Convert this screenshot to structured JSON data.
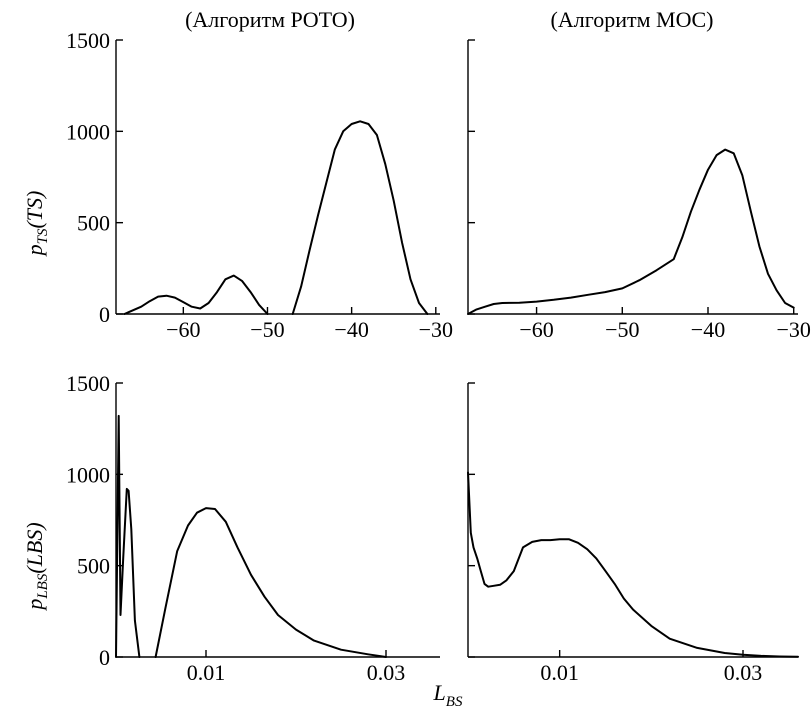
{
  "figure": {
    "x_shared_label": "L",
    "x_shared_label_sub": "BS"
  },
  "chart_data": [
    {
      "type": "line",
      "title": "(Алгоритм POTO)",
      "ylabel_main": "p",
      "ylabel_sub": "TS",
      "ylabel_arg": "(TS)",
      "xlim": [
        -68,
        -29.5
      ],
      "ylim": [
        0,
        1500
      ],
      "xticks": [
        -60,
        -50,
        -40,
        -30
      ],
      "xtick_labels": [
        "−60",
        "−50",
        "−40",
        "−30"
      ],
      "yticks": [
        0,
        500,
        1000,
        1500
      ],
      "ytick_labels": [
        "0",
        "500",
        "1000",
        "1500"
      ],
      "series": [
        {
          "segments": [
            {
              "x": [
                -67,
                -65,
                -64,
                -63,
                -62,
                -61,
                -60,
                -59,
                -58,
                -57,
                -56,
                -55,
                -54,
                -53,
                -52,
                -51,
                -50
              ],
              "y": [
                0,
                40,
                70,
                95,
                100,
                90,
                65,
                40,
                30,
                60,
                120,
                190,
                210,
                180,
                120,
                50,
                0
              ]
            },
            {
              "x": [
                -47,
                -46,
                -45,
                -44,
                -43,
                -42,
                -41,
                -40,
                -39,
                -38,
                -37,
                -36,
                -35,
                -34,
                -33,
                -32,
                -31
              ],
              "y": [
                0,
                150,
                350,
                540,
                720,
                900,
                1000,
                1040,
                1055,
                1040,
                980,
                820,
                620,
                390,
                190,
                60,
                0
              ]
            }
          ]
        }
      ]
    },
    {
      "type": "line",
      "title": "(Алгоритм MOC)",
      "xlim": [
        -68,
        -29.5
      ],
      "ylim": [
        0,
        1500
      ],
      "xticks": [
        -60,
        -50,
        -40,
        -30
      ],
      "xtick_labels": [
        "−60",
        "−50",
        "−40",
        "−30"
      ],
      "yticks": [
        0,
        500,
        1000,
        1500
      ],
      "ytick_labels": [
        "",
        "",
        "",
        ""
      ],
      "series": [
        {
          "segments": [
            {
              "x": [
                -68,
                -67,
                -66,
                -65,
                -64,
                -62,
                -60,
                -58,
                -56,
                -54,
                -52,
                -50,
                -48,
                -46,
                -44,
                -43,
                -42,
                -41,
                -40,
                -39,
                -38,
                -37,
                -36,
                -35,
                -34,
                -33,
                -32,
                -31,
                -30
              ],
              "y": [
                0,
                25,
                40,
                55,
                60,
                62,
                68,
                78,
                90,
                105,
                120,
                140,
                185,
                240,
                300,
                420,
                560,
                680,
                790,
                870,
                900,
                880,
                760,
                560,
                370,
                220,
                130,
                60,
                35
              ]
            }
          ]
        }
      ]
    },
    {
      "type": "line",
      "ylabel_main": "p",
      "ylabel_sub": "LBS",
      "ylabel_arg": "(LBS)",
      "xlim": [
        0,
        0.036
      ],
      "ylim": [
        0,
        1500
      ],
      "xticks": [
        0.01,
        0.03
      ],
      "xtick_labels": [
        "0.01",
        "0.03"
      ],
      "yticks": [
        0,
        500,
        1000,
        1500
      ],
      "ytick_labels": [
        "0",
        "500",
        "1000",
        "1500"
      ],
      "series": [
        {
          "segments": [
            {
              "x": [
                0,
                0.0003,
                0.0005,
                0.0008,
                0.0012,
                0.0014,
                0.0017,
                0.0021,
                0.0026
              ],
              "y": [
                0,
                1320,
                230,
                540,
                920,
                910,
                700,
                200,
                0
              ]
            },
            {
              "x": [
                0.0044,
                0.0055,
                0.0068,
                0.008,
                0.009,
                0.01,
                0.011,
                0.0122,
                0.0135,
                0.015,
                0.0165,
                0.018,
                0.02,
                0.022,
                0.025,
                0.028,
                0.03
              ],
              "y": [
                0,
                270,
                580,
                720,
                790,
                815,
                810,
                740,
                600,
                450,
                330,
                230,
                150,
                90,
                40,
                15,
                0
              ]
            }
          ]
        }
      ]
    },
    {
      "type": "line",
      "xlim": [
        0,
        0.036
      ],
      "ylim": [
        0,
        1500
      ],
      "xticks": [
        0.01,
        0.03
      ],
      "xtick_labels": [
        "0.01",
        "0.03"
      ],
      "yticks": [
        0,
        500,
        1000,
        1500
      ],
      "ytick_labels": [
        "",
        "",
        "",
        ""
      ],
      "series": [
        {
          "segments": [
            {
              "x": [
                0,
                0.0003,
                0.0006,
                0.001,
                0.0014,
                0.0018,
                0.0022,
                0.0028,
                0.0035,
                0.0042,
                0.005,
                0.006,
                0.007,
                0.008,
                0.009,
                0.01,
                0.011,
                0.012,
                0.013,
                0.014,
                0.015,
                0.016,
                0.017,
                0.018,
                0.02,
                0.022,
                0.025,
                0.028,
                0.03,
                0.032,
                0.034,
                0.036
              ],
              "y": [
                1010,
                680,
                600,
                540,
                470,
                400,
                385,
                390,
                395,
                420,
                470,
                600,
                630,
                640,
                640,
                645,
                645,
                625,
                590,
                540,
                470,
                400,
                320,
                260,
                170,
                100,
                50,
                22,
                12,
                6,
                3,
                1
              ]
            }
          ]
        }
      ]
    }
  ]
}
